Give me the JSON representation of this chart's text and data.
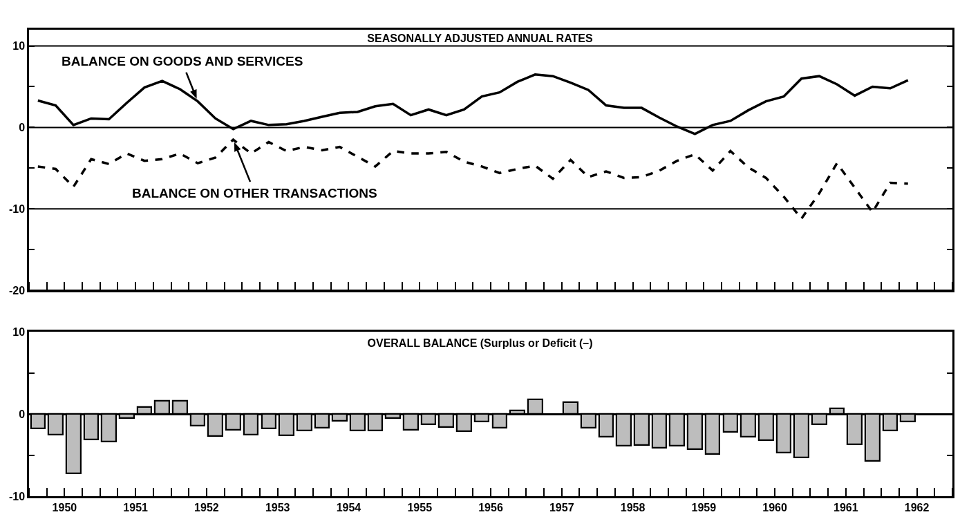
{
  "chart_data": [
    {
      "type": "line",
      "title": "SEASONALLY ADJUSTED ANNUAL RATES",
      "x": [
        1950.125,
        1950.375,
        1950.625,
        1950.875,
        1951.125,
        1951.375,
        1951.625,
        1951.875,
        1952.125,
        1952.375,
        1952.625,
        1952.875,
        1953.125,
        1953.375,
        1953.625,
        1953.875,
        1954.125,
        1954.375,
        1954.625,
        1954.875,
        1955.125,
        1955.375,
        1955.625,
        1955.875,
        1956.125,
        1956.375,
        1956.625,
        1956.875,
        1957.125,
        1957.375,
        1957.625,
        1957.875,
        1958.125,
        1958.375,
        1958.625,
        1958.875,
        1959.125,
        1959.375,
        1959.625,
        1959.875,
        1960.125,
        1960.375,
        1960.625,
        1960.875,
        1961.125,
        1961.375,
        1961.625,
        1961.875,
        1962.125,
        1962.375
      ],
      "series": [
        {
          "name": "BALANCE ON GOODS AND SERVICES",
          "color": "#000000",
          "line_style": "solid",
          "values": [
            3.3,
            2.7,
            0.3,
            1.1,
            1.0,
            3.0,
            4.9,
            5.7,
            4.7,
            3.2,
            1.1,
            -0.2,
            0.8,
            0.3,
            0.4,
            0.8,
            1.3,
            1.8,
            1.9,
            2.6,
            2.9,
            1.5,
            2.2,
            1.5,
            2.2,
            3.8,
            4.3,
            5.6,
            6.5,
            6.3,
            5.5,
            4.6,
            2.7,
            2.4,
            2.4,
            1.2,
            0.1,
            -0.8,
            0.3,
            0.8,
            2.1,
            3.2,
            3.8,
            6.0,
            6.3,
            5.3,
            3.9,
            5.0,
            4.8,
            5.8
          ]
        },
        {
          "name": "BALANCE ON OTHER TRANSACTIONS",
          "color": "#000000",
          "line_style": "dashed",
          "values": [
            -4.8,
            -5.1,
            -7.3,
            -3.9,
            -4.5,
            -3.2,
            -4.1,
            -3.9,
            -3.2,
            -4.4,
            -3.7,
            -1.5,
            -3.2,
            -1.8,
            -2.9,
            -2.4,
            -2.8,
            -2.4,
            -3.6,
            -4.8,
            -2.9,
            -3.2,
            -3.2,
            -3.0,
            -4.2,
            -4.8,
            -5.6,
            -5.1,
            -4.7,
            -6.3,
            -4.0,
            -6.1,
            -5.4,
            -6.2,
            -6.1,
            -5.3,
            -4.1,
            -3.3,
            -5.3,
            -2.9,
            -4.9,
            -6.2,
            -8.5,
            -11.2,
            -8.1,
            -4.4,
            -7.4,
            -10.4,
            -6.8,
            -6.9
          ]
        }
      ],
      "xlim": [
        1950,
        1963
      ],
      "ylim": [
        -20,
        12
      ],
      "yticks": [
        10,
        {
          "value": 5,
          "label": null
        },
        0,
        {
          "value": -5,
          "label": null
        },
        -10,
        {
          "value": -15,
          "label": null
        },
        -20
      ],
      "grid": "y",
      "tick_labels": "y"
    },
    {
      "type": "bar",
      "title": "OVERALL BALANCE (Surplus or Deficit (–)",
      "x": [
        1950.125,
        1950.375,
        1950.625,
        1950.875,
        1951.125,
        1951.375,
        1951.625,
        1951.875,
        1952.125,
        1952.375,
        1952.625,
        1952.875,
        1953.125,
        1953.375,
        1953.625,
        1953.875,
        1954.125,
        1954.375,
        1954.625,
        1954.875,
        1955.125,
        1955.375,
        1955.625,
        1955.875,
        1956.125,
        1956.375,
        1956.625,
        1956.875,
        1957.125,
        1957.375,
        1957.625,
        1957.875,
        1958.125,
        1958.375,
        1958.625,
        1958.875,
        1959.125,
        1959.375,
        1959.625,
        1959.875,
        1960.125,
        1960.375,
        1960.625,
        1960.875,
        1961.125,
        1961.375,
        1961.625,
        1961.875,
        1962.125,
        1962.375
      ],
      "values": [
        -1.8,
        -2.5,
        -7.2,
        -3.1,
        -3.4,
        -0.5,
        0.8,
        1.6,
        1.6,
        -1.4,
        -2.7,
        -1.9,
        -2.5,
        -1.8,
        -2.6,
        -2.0,
        -1.7,
        -0.8,
        -2.0,
        -2.0,
        -0.5,
        -1.9,
        -1.3,
        -1.6,
        -2.1,
        -0.9,
        -1.7,
        0.4,
        1.8,
        null,
        1.4,
        -1.7,
        -2.8,
        -3.9,
        -3.8,
        -4.1,
        -3.9,
        -4.3,
        -4.9,
        -2.2,
        -2.8,
        -3.2,
        -4.7,
        -5.3,
        -1.3,
        0.7,
        -3.7,
        -5.7,
        -2.0,
        -0.9
      ],
      "color": "#bdbdbd",
      "xlim": [
        1950,
        1963
      ],
      "xticks": [
        {
          "value": 1950.5,
          "label": "1950"
        },
        {
          "value": 1951.5,
          "label": "1951"
        },
        {
          "value": 1952.5,
          "label": "1952"
        },
        {
          "value": 1953.5,
          "label": "1953"
        },
        {
          "value": 1954.5,
          "label": "1954"
        },
        {
          "value": 1955.5,
          "label": "1955"
        },
        {
          "value": 1956.5,
          "label": "1956"
        },
        {
          "value": 1957.5,
          "label": "1957"
        },
        {
          "value": 1958.5,
          "label": "1958"
        },
        {
          "value": 1959.5,
          "label": "1959"
        },
        {
          "value": 1960.5,
          "label": "1960"
        },
        {
          "value": 1961.5,
          "label": "1961"
        },
        {
          "value": 1962.5,
          "label": "1962"
        }
      ],
      "ylim": [
        -10,
        10
      ],
      "yticks": [
        10,
        {
          "value": 5,
          "label": null
        },
        0,
        {
          "value": -5,
          "label": null
        },
        -10
      ]
    }
  ]
}
